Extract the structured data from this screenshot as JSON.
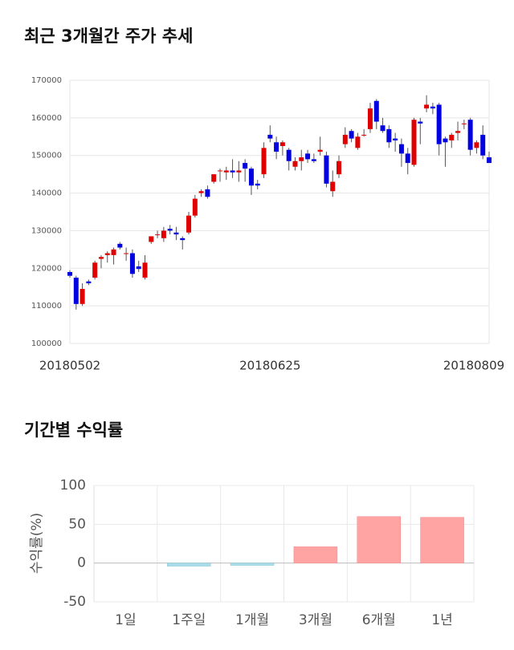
{
  "chart_data": [
    {
      "type": "candlestick",
      "title": "최근 3개월간 주가 추세",
      "categories": [
        "20180502",
        null,
        null,
        null,
        null,
        null,
        null,
        null,
        null,
        null,
        null,
        null,
        null,
        null,
        null,
        null,
        null,
        null,
        null,
        null,
        null,
        null,
        null,
        null,
        null,
        null,
        null,
        null,
        null,
        null,
        null,
        null,
        "20180625",
        null,
        null,
        null,
        null,
        null,
        null,
        null,
        null,
        null,
        null,
        null,
        null,
        null,
        null,
        null,
        null,
        null,
        null,
        null,
        null,
        null,
        null,
        null,
        null,
        null,
        null,
        null,
        null,
        null,
        null,
        null,
        null,
        null,
        null,
        "20180809"
      ],
      "open": [
        119000,
        117500,
        110500,
        116500,
        117500,
        122500,
        123500,
        123500,
        126500,
        124000,
        124000,
        120500,
        117500,
        127000,
        129000,
        128000,
        130500,
        129500,
        128000,
        129500,
        134000,
        140000,
        141000,
        143000,
        146000,
        145500,
        146000,
        145500,
        148000,
        146500,
        142500,
        145000,
        155500,
        153500,
        152500,
        151500,
        147000,
        148500,
        150500,
        149000,
        151000,
        150000,
        140500,
        145000,
        153000,
        156500,
        152000,
        155500,
        157000,
        164500,
        158000,
        157000,
        154500,
        153000,
        150500,
        147500,
        159000,
        162500,
        163000,
        163500,
        154500,
        154000,
        156000,
        158500,
        159500,
        152000,
        155500,
        149500
      ],
      "high": [
        119500,
        118000,
        116000,
        117000,
        122000,
        123500,
        124500,
        125500,
        127000,
        125500,
        125000,
        122000,
        123500,
        128500,
        130000,
        131000,
        131500,
        131000,
        128500,
        135000,
        139500,
        141000,
        142000,
        145000,
        146500,
        147000,
        149000,
        148500,
        149000,
        147000,
        143500,
        153500,
        158000,
        155000,
        154000,
        152000,
        149500,
        151500,
        151500,
        150500,
        155000,
        151000,
        146000,
        150000,
        157500,
        157000,
        156000,
        157000,
        164000,
        165000,
        160000,
        158000,
        156000,
        154500,
        152000,
        160000,
        160000,
        166000,
        164000,
        164000,
        155000,
        156000,
        159000,
        159500,
        160000,
        154000,
        158000,
        151000
      ],
      "low": [
        117500,
        109000,
        110000,
        115500,
        117000,
        120000,
        121500,
        121000,
        125000,
        122000,
        117500,
        119000,
        117000,
        126500,
        128000,
        127000,
        129000,
        127500,
        125000,
        129000,
        133500,
        139000,
        138500,
        142500,
        143000,
        143500,
        144000,
        143000,
        143000,
        139500,
        141000,
        144000,
        153500,
        149000,
        150000,
        146000,
        146000,
        146000,
        148000,
        148000,
        150000,
        141500,
        139000,
        144000,
        152000,
        153500,
        151500,
        155000,
        156000,
        157000,
        156000,
        152000,
        151000,
        147000,
        145000,
        147000,
        153000,
        161500,
        161000,
        150000,
        147000,
        152000,
        154000,
        157000,
        150000,
        150500,
        149000,
        148000
      ],
      "close": [
        118000,
        110500,
        114500,
        116000,
        121500,
        123000,
        124000,
        125000,
        125500,
        124000,
        118500,
        119800,
        121500,
        128500,
        129000,
        130000,
        130000,
        129000,
        127500,
        134000,
        138500,
        140500,
        139000,
        145000,
        146000,
        146000,
        145500,
        146000,
        146500,
        142000,
        142000,
        152000,
        154500,
        151000,
        153500,
        148500,
        148500,
        149500,
        149000,
        148500,
        151500,
        142500,
        143000,
        148500,
        155500,
        154500,
        155000,
        155500,
        162500,
        159000,
        156500,
        153500,
        154000,
        150500,
        148000,
        159500,
        158500,
        163500,
        162500,
        153000,
        153500,
        155500,
        156500,
        158500,
        151500,
        153500,
        150000,
        148000
      ],
      "up_color": "#e00000",
      "down_color": "#0000e0",
      "ylim": [
        100000,
        170000
      ],
      "yticks": [
        100000,
        110000,
        120000,
        130000,
        140000,
        150000,
        160000,
        170000
      ],
      "grid": true
    },
    {
      "type": "bar",
      "title": "기간별 수익률",
      "ylabel": "수익률(%)",
      "categories": [
        "1일",
        "1주일",
        "1개월",
        "3개월",
        "6개월",
        "1년"
      ],
      "values": [
        0,
        -4,
        -3,
        21,
        60,
        59
      ],
      "positive_color": "#ffa3a3",
      "negative_color": "#a8dce8",
      "ylim": [
        -50,
        100
      ],
      "yticks": [
        -50,
        0,
        50,
        100
      ],
      "grid": true
    }
  ]
}
